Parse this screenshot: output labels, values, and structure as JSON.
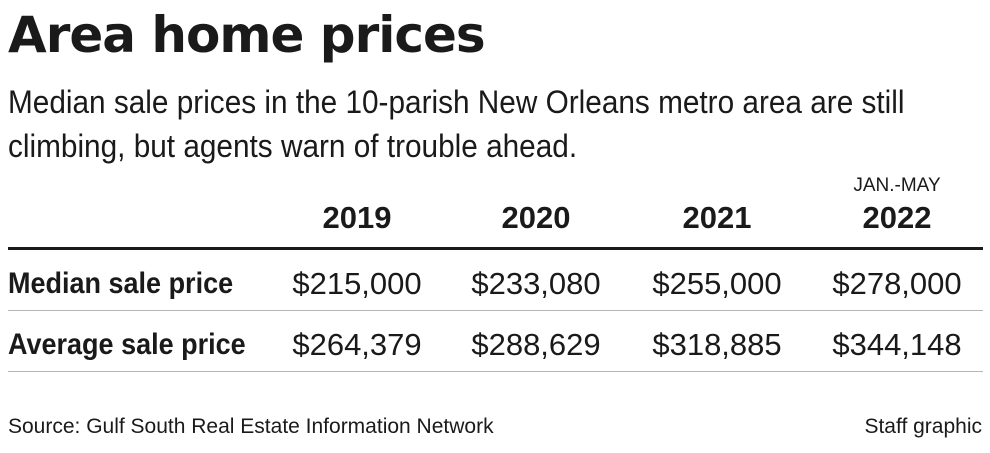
{
  "title": "Area home prices",
  "subtitle": "Median sale prices in the 10-parish New Orleans metro area are still climbing, but agents warn of trouble ahead.",
  "source": "Source: Gulf South Real Estate Information Network",
  "credit": "Staff graphic",
  "chart_data": {
    "type": "table",
    "title": "Area home prices",
    "subtitle": "Median sale prices in the 10-parish New Orleans metro area are still climbing, but agents warn of trouble ahead.",
    "columns": [
      {
        "note": "",
        "label": "2019"
      },
      {
        "note": "",
        "label": "2020"
      },
      {
        "note": "",
        "label": "2021"
      },
      {
        "note": "JAN.-MAY",
        "label": "2022"
      }
    ],
    "rows": [
      {
        "label": "Median sale price",
        "values": [
          215000,
          233080,
          255000,
          278000
        ],
        "display": [
          "$215,000",
          "$233,080",
          "$255,000",
          "$278,000"
        ]
      },
      {
        "label": "Average sale price",
        "values": [
          264379,
          288629,
          318885,
          344148
        ],
        "display": [
          "$264,379",
          "$288,629",
          "$318,885",
          "$344,148"
        ]
      }
    ]
  }
}
